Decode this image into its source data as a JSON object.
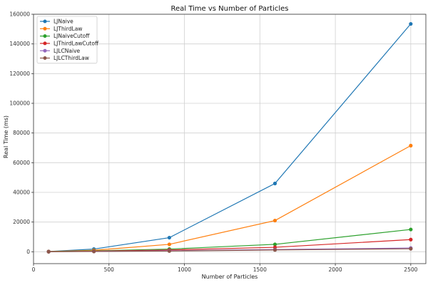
{
  "chart_data": {
    "type": "line",
    "title": "Real Time vs Number of Particles",
    "xlabel": "Number of Particles",
    "ylabel": "Real Time (ms)",
    "xlim": [
      0,
      2600
    ],
    "ylim": [
      -8000,
      160000
    ],
    "x_ticks": [
      "0",
      "500",
      "1000",
      "1500",
      "2000",
      "2500"
    ],
    "y_ticks": [
      "0",
      "20000",
      "40000",
      "60000",
      "80000",
      "100000",
      "120000",
      "140000",
      "160000"
    ],
    "grid": true,
    "legend_position": "top-left",
    "x": [
      100,
      400,
      900,
      1600,
      2500
    ],
    "series": [
      {
        "name": "LJNaive",
        "color": "#1f77b4",
        "values": [
          200,
          1800,
          9500,
          46000,
          153500
        ]
      },
      {
        "name": "LJThirdLaw",
        "color": "#ff7f0e",
        "values": [
          150,
          1000,
          5000,
          21000,
          71500
        ]
      },
      {
        "name": "LJNaiveCutoff",
        "color": "#2ca02c",
        "values": [
          100,
          600,
          1800,
          5000,
          15000
        ]
      },
      {
        "name": "LJThirdLawCutoff",
        "color": "#d62728",
        "values": [
          80,
          400,
          1200,
          3000,
          8200
        ]
      },
      {
        "name": "LJLCNaive",
        "color": "#9467bd",
        "values": [
          60,
          250,
          700,
          1500,
          2500
        ]
      },
      {
        "name": "LJLCThirdLaw",
        "color": "#8c564b",
        "values": [
          50,
          200,
          500,
          1200,
          2000
        ]
      }
    ]
  }
}
